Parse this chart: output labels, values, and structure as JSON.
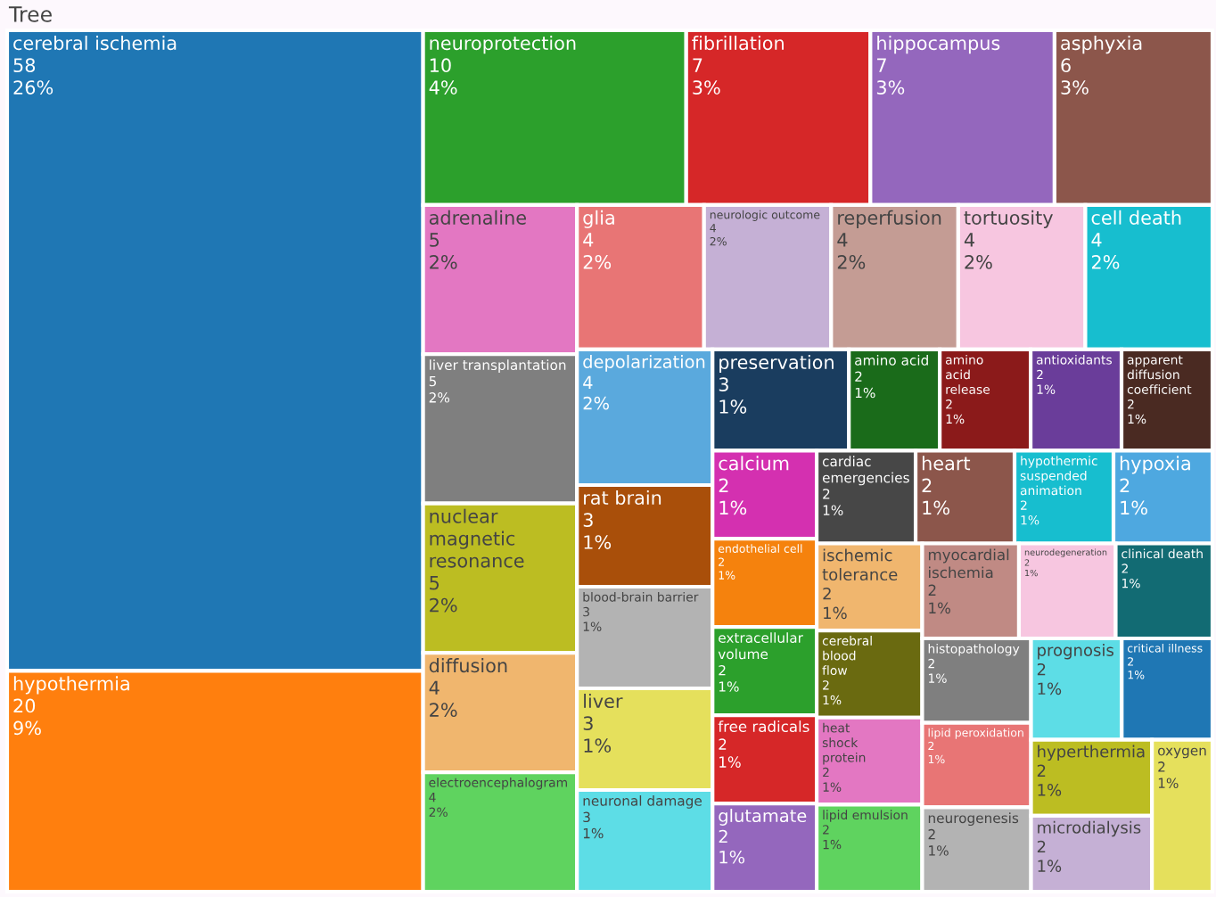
{
  "chart_data": {
    "type": "other",
    "title": "Tree",
    "categories": [
      "cerebral ischemia",
      "hypothermia",
      "neuroprotection",
      "fibrillation",
      "hippocampus",
      "asphyxia",
      "adrenaline",
      "liver transplantation",
      "nuclear magnetic resonance",
      "diffusion",
      "electroencephalogram",
      "glia",
      "neurologic outcome",
      "reperfusion",
      "tortuosity",
      "cell death",
      "depolarization",
      "rat brain",
      "blood-brain barrier",
      "liver",
      "neuronal damage",
      "preservation",
      "amino acid",
      "amino acid release",
      "antioxidants",
      "apparent diffusion coefficient",
      "calcium",
      "endothelial cell",
      "extracellular volume",
      "free radicals",
      "glutamate",
      "cardiac emergencies",
      "heart",
      "hypothermic suspended animation",
      "hypoxia",
      "ischemic tolerance",
      "cerebral blood flow",
      "heat shock protein",
      "lipid emulsion",
      "myocardial ischemia",
      "neurodegeneration",
      "clinical death",
      "histopathology",
      "lipid peroxidation",
      "neurogenesis",
      "prognosis",
      "critical illness",
      "hyperthermia",
      "microdialysis",
      "oxygen"
    ],
    "values": [
      58,
      20,
      10,
      7,
      7,
      6,
      5,
      5,
      5,
      4,
      4,
      4,
      4,
      4,
      4,
      4,
      4,
      3,
      3,
      3,
      3,
      3,
      2,
      2,
      2,
      2,
      2,
      2,
      2,
      2,
      2,
      2,
      2,
      2,
      2,
      2,
      2,
      2,
      2,
      2,
      2,
      2,
      2,
      2,
      2,
      2,
      2,
      2,
      2,
      2
    ],
    "value_labels": [
      "58\n26%",
      "20\n9%",
      "10\n4%",
      "7\n3%",
      "7\n3%",
      "6\n3%",
      "5\n2%",
      "5\n2%",
      "5\n2%",
      "4\n2%",
      "4\n2%",
      "4\n2%",
      "4\n2%",
      "4\n2%",
      "4\n2%",
      "4\n2%",
      "4\n2%",
      "3\n1%",
      "3\n1%",
      "3\n1%",
      "3\n1%",
      "3\n1%",
      "2\n1%",
      "2\n1%",
      "2\n1%",
      "2\n1%",
      "2\n1%",
      "2\n1%",
      "2\n1%",
      "2\n1%",
      "2\n1%",
      "2\n1%",
      "2\n1%",
      "2\n1%",
      "2\n1%",
      "2\n1%",
      "2\n1%",
      "2\n1%",
      "2\n1%",
      "2\n1%",
      "2\n1%",
      "2\n1%",
      "2\n1%",
      "2\n1%",
      "2\n1%",
      "2\n1%",
      "2\n1%",
      "2\n1%",
      "2\n1%",
      "2\n1%"
    ],
    "colors": [
      "#1f77b4",
      "#ff7f0e",
      "#2ca02c",
      "#d62728",
      "#9467bd",
      "#8c564b",
      "#e377c2",
      "#7f7f7f",
      "#bcbd22",
      "#f0b66e",
      "#5fd35f",
      "#e87575",
      "#c5b0d5",
      "#c49c94",
      "#f7c6e0",
      "#17becf",
      "#5aa9dd",
      "#a94f0a",
      "#b3b3b3",
      "#e5e05c",
      "#5ddde6",
      "#1a3d5f",
      "#1a6b1a",
      "#8b1a1a",
      "#6a3d9a",
      "#4a2a22",
      "#d430b0",
      "#f5820d",
      "#2ca02c",
      "#d62728",
      "#9467bd",
      "#474747",
      "#8c564b",
      "#17becf",
      "#4ea8e0",
      "#f0b66e",
      "#6a6a10",
      "#e377c2",
      "#5fd35f",
      "#c08a84",
      "#f7c6e0",
      "#126b73",
      "#7f7f7f",
      "#e87575",
      "#b3b3b3",
      "#5ddde6",
      "#1f77b4",
      "#bcbd22",
      "#c5b0d5",
      "#e5e05c"
    ]
  }
}
